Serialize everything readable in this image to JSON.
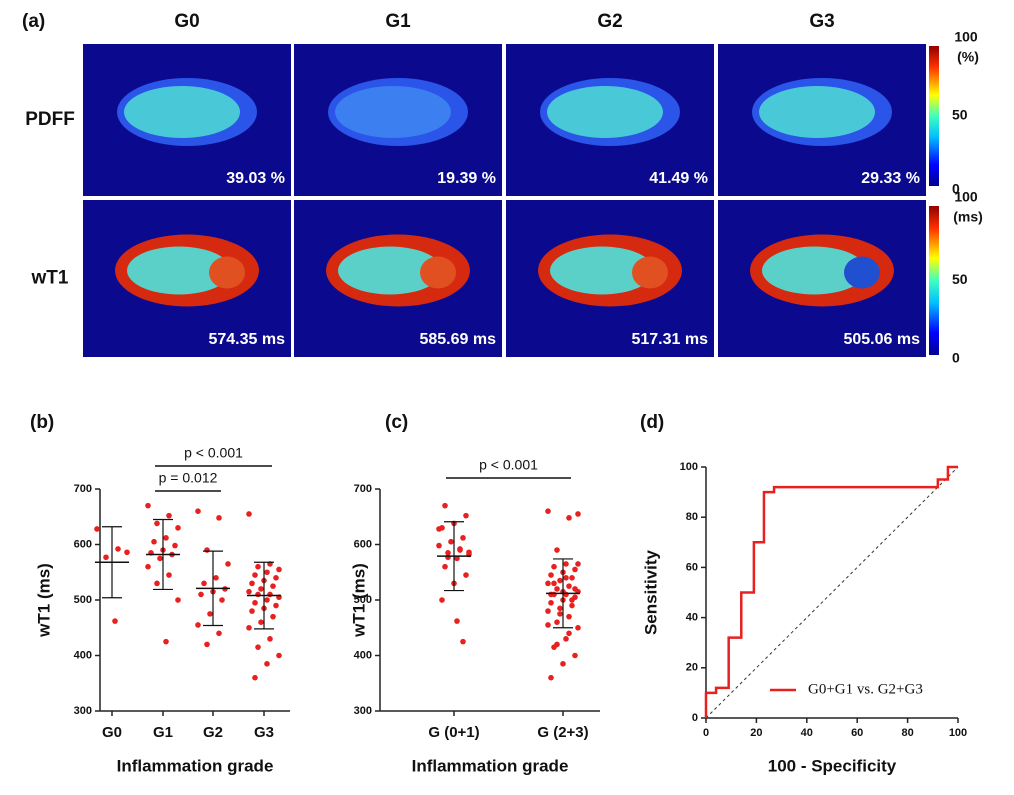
{
  "figure_labels": [
    "(a)",
    "(b)",
    "(c)",
    "(d)"
  ],
  "panel_a": {
    "columns": [
      "G0",
      "G1",
      "G2",
      "G3"
    ],
    "rows": [
      {
        "label": "PDFF",
        "values": [
          "39.03 %",
          "19.39 %",
          "41.49 %",
          "29.33 %"
        ]
      },
      {
        "label": "wT1",
        "values": [
          "574.35 ms",
          "585.69 ms",
          "517.31 ms",
          "505.06 ms"
        ]
      }
    ],
    "colorbars": [
      {
        "ticks": [
          0,
          50,
          100
        ],
        "unit": "(%)"
      },
      {
        "ticks": [
          0,
          50,
          100
        ],
        "unit": "(ms)"
      }
    ]
  },
  "chart_data": [
    {
      "type": "dot",
      "xlabel": "Inflammation grade",
      "ylabel": "wT1  (ms)",
      "categories": [
        "G0",
        "G1",
        "G2",
        "G3"
      ],
      "points": [
        [
          628,
          592,
          577,
          586,
          462
        ],
        [
          670,
          652,
          638,
          630,
          612,
          605,
          598,
          590,
          585,
          582,
          575,
          560,
          545,
          530,
          500,
          425
        ],
        [
          660,
          648,
          590,
          565,
          540,
          530,
          520,
          515,
          510,
          500,
          475,
          455,
          440,
          420
        ],
        [
          655,
          565,
          560,
          555,
          550,
          545,
          540,
          535,
          530,
          525,
          520,
          515,
          510,
          510,
          505,
          500,
          495,
          490,
          485,
          480,
          470,
          460,
          450,
          430,
          415,
          400,
          385,
          360
        ]
      ],
      "values": [
        568,
        582,
        521,
        508
      ],
      "errors": [
        64,
        63,
        67,
        60
      ],
      "color": "#e8201f",
      "ylim": [
        300,
        700
      ],
      "yticks": [
        300,
        400,
        500,
        600,
        700
      ],
      "annotations": [
        "p = 0.012",
        "p < 0.001"
      ]
    },
    {
      "type": "dot",
      "xlabel": "Inflammation grade",
      "ylabel": "wT1  (ms)",
      "categories": [
        "G (0+1)",
        "G (2+3)"
      ],
      "points": [
        [
          628,
          592,
          577,
          586,
          462,
          670,
          652,
          638,
          630,
          612,
          605,
          598,
          590,
          585,
          582,
          575,
          560,
          545,
          530,
          500,
          425
        ],
        [
          660,
          648,
          590,
          565,
          540,
          530,
          520,
          515,
          510,
          500,
          475,
          455,
          440,
          420,
          655,
          565,
          560,
          555,
          550,
          545,
          540,
          535,
          530,
          525,
          520,
          515,
          510,
          510,
          505,
          500,
          495,
          490,
          485,
          480,
          470,
          460,
          450,
          430,
          415,
          400,
          385,
          360
        ]
      ],
      "values": [
        579,
        512
      ],
      "errors": [
        62,
        62
      ],
      "color": "#e8201f",
      "ylim": [
        300,
        700
      ],
      "yticks": [
        300,
        400,
        500,
        600,
        700
      ],
      "annotations": [
        "p < 0.001"
      ]
    },
    {
      "type": "line",
      "xlabel": "100 - Specificity",
      "ylabel": "Sensitivity",
      "x": [
        0,
        0,
        4,
        4,
        9,
        9,
        14,
        14,
        19,
        19,
        23,
        23,
        27,
        27,
        92,
        92,
        96,
        96,
        100
      ],
      "series": [
        {
          "name": "G0+G1 vs. G2+G3",
          "color": "#e8201f",
          "values": [
            0,
            10,
            10,
            12,
            12,
            32,
            32,
            50,
            50,
            70,
            70,
            90,
            90,
            92,
            92,
            95,
            95,
            100,
            100
          ]
        }
      ],
      "xlim": [
        0,
        100
      ],
      "ylim": [
        0,
        100
      ],
      "xticks": [
        0,
        20,
        40,
        60,
        80,
        100
      ],
      "yticks": [
        0,
        20,
        40,
        60,
        80,
        100
      ],
      "legend": "lower right"
    }
  ]
}
